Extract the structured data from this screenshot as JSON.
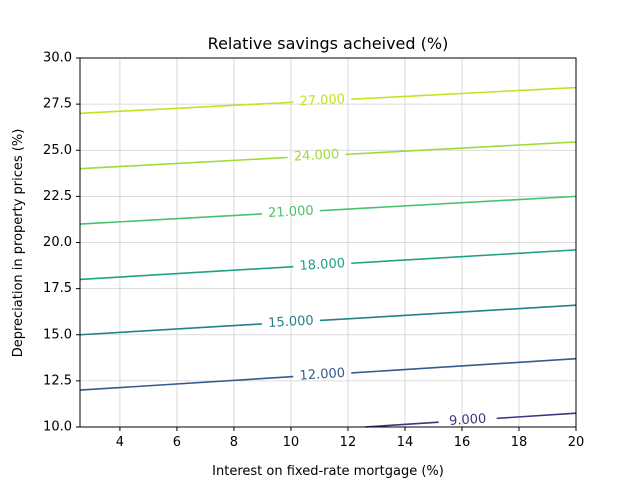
{
  "chart_data": {
    "type": "contour",
    "title": "Relative savings acheived (%)",
    "xlabel": "Interest on fixed-rate mortgage (%)",
    "ylabel": "Depreciation in property prices (%)",
    "xlim": [
      2.6,
      20
    ],
    "ylim": [
      10,
      30
    ],
    "xticks": [
      4,
      6,
      8,
      10,
      12,
      14,
      16,
      18,
      20
    ],
    "xtick_labels": [
      "4",
      "6",
      "8",
      "10",
      "12",
      "14",
      "16",
      "18",
      "20"
    ],
    "yticks": [
      10,
      12.5,
      15,
      17.5,
      20,
      22.5,
      25,
      27.5,
      30
    ],
    "ytick_labels": [
      "10.0",
      "12.5",
      "15.0",
      "17.5",
      "20.0",
      "22.5",
      "25.0",
      "27.5",
      "30.0"
    ],
    "grid": true,
    "colormap": "viridis",
    "levels": [
      {
        "value": 9,
        "label": "9.000",
        "color": "#46327e",
        "x": [
          12.6,
          20
        ],
        "y": [
          10.0,
          10.75
        ],
        "label_x": 16.2
      },
      {
        "value": 12,
        "label": "12.000",
        "color": "#365c8d",
        "x": [
          2.6,
          20
        ],
        "y": [
          12.0,
          13.7
        ],
        "label_x": 11.1
      },
      {
        "value": 15,
        "label": "15.000",
        "color": "#277f8e",
        "x": [
          2.6,
          20
        ],
        "y": [
          15.0,
          16.6
        ],
        "label_x": 10.0
      },
      {
        "value": 18,
        "label": "18.000",
        "color": "#1fa187",
        "x": [
          2.6,
          20
        ],
        "y": [
          18.0,
          19.6
        ],
        "label_x": 11.1
      },
      {
        "value": 21,
        "label": "21.000",
        "color": "#4ac16d",
        "x": [
          2.6,
          20
        ],
        "y": [
          21.0,
          22.5
        ],
        "label_x": 10.0
      },
      {
        "value": 24,
        "label": "24.000",
        "color": "#9fda3a",
        "x": [
          2.6,
          20
        ],
        "y": [
          24.0,
          25.45
        ],
        "label_x": 10.9
      },
      {
        "value": 27,
        "label": "27.000",
        "color": "#c8e020",
        "x": [
          2.6,
          20
        ],
        "y": [
          27.0,
          28.4
        ],
        "label_x": 11.1
      }
    ]
  }
}
